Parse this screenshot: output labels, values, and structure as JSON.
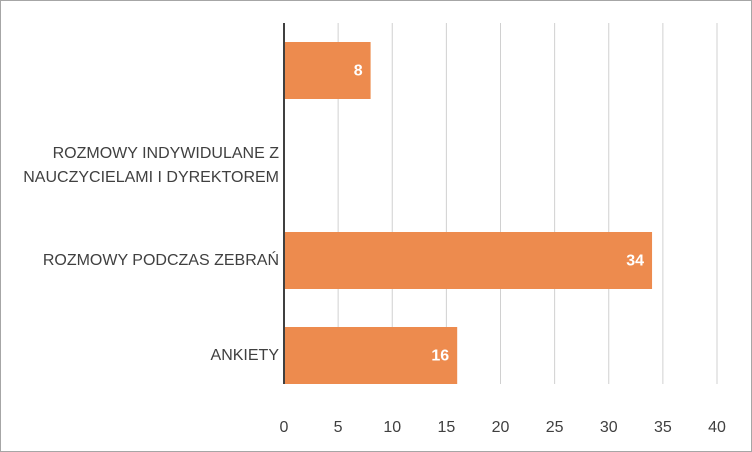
{
  "chart_data": {
    "type": "hbar",
    "categories": [
      null,
      "ROZMOWY INDYWIDULANE      Z\nNAUCZYCIELAMI I DYREKTOREM",
      "ROZMOWY PODCZAS ZEBRAŃ",
      "ANKIETY"
    ],
    "values": [
      8,
      null,
      34,
      16
    ],
    "color": "#ed8b4e",
    "xlim": [
      0,
      40
    ],
    "xticks": [
      0,
      5,
      10,
      15,
      20,
      25,
      30,
      35,
      40
    ],
    "grid": true
  }
}
